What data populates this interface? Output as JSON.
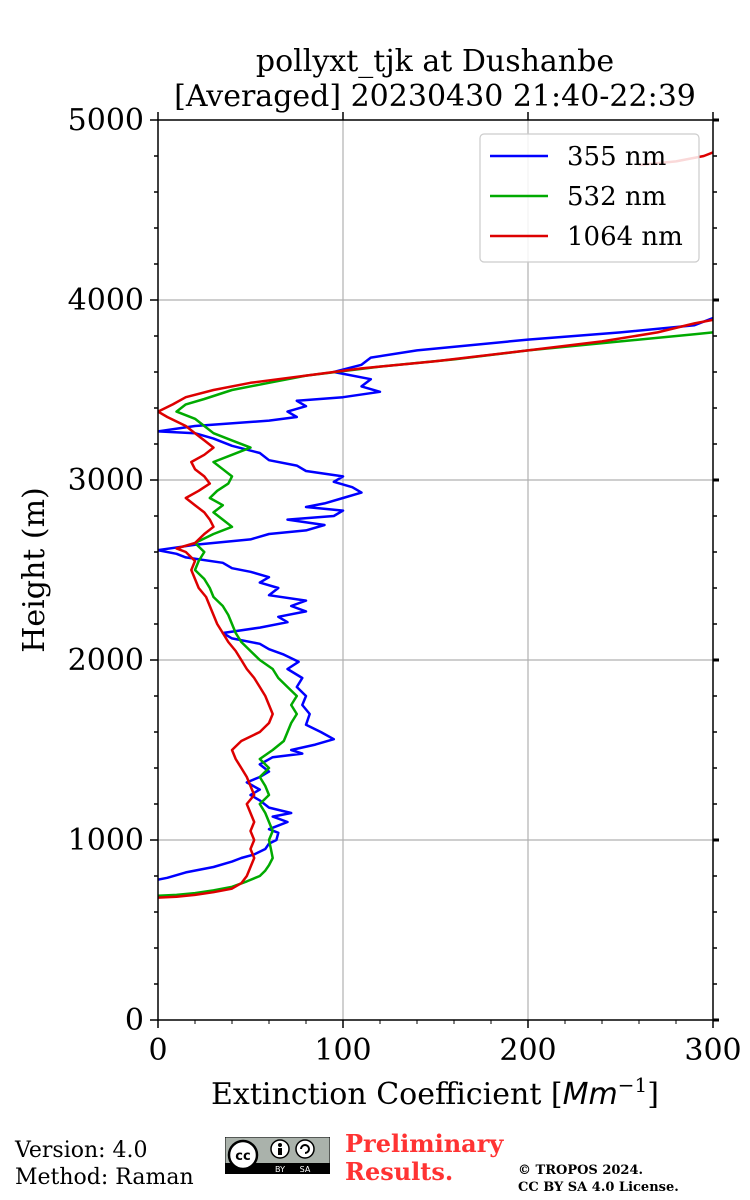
{
  "chart_data": {
    "type": "line",
    "title": "pollyxt_tjk at Dushanbe",
    "subtitle": "[Averaged] 20230430 21:40-22:39",
    "xlabel": "Extinction Coefficient [",
    "xlabel_unit": "Mm",
    "xlabel_exp": "−1",
    "xlabel_end": "]",
    "ylabel": "Height (m)",
    "xlim": [
      0,
      300
    ],
    "ylim": [
      0,
      5000
    ],
    "xticks": [
      0,
      100,
      200,
      300
    ],
    "xtick_labels": [
      "0",
      "100",
      "200",
      "300"
    ],
    "yticks": [
      0,
      1000,
      2000,
      3000,
      4000,
      5000
    ],
    "ytick_labels": [
      "0",
      "1000",
      "2000",
      "3000",
      "4000",
      "5000"
    ],
    "grid": true,
    "legend_position": "top-right",
    "series": [
      {
        "name": "355 nm",
        "color": "#0000ff",
        "points": [
          [
            0,
            780
          ],
          [
            5,
            790
          ],
          [
            15,
            820
          ],
          [
            30,
            850
          ],
          [
            40,
            880
          ],
          [
            45,
            900
          ],
          [
            52,
            920
          ],
          [
            58,
            950
          ],
          [
            60,
            980
          ],
          [
            64,
            1000
          ],
          [
            65,
            1040
          ],
          [
            60,
            1060
          ],
          [
            65,
            1080
          ],
          [
            70,
            1100
          ],
          [
            62,
            1130
          ],
          [
            72,
            1150
          ],
          [
            60,
            1180
          ],
          [
            55,
            1220
          ],
          [
            50,
            1250
          ],
          [
            55,
            1280
          ],
          [
            48,
            1320
          ],
          [
            55,
            1350
          ],
          [
            60,
            1380
          ],
          [
            55,
            1420
          ],
          [
            62,
            1460
          ],
          [
            78,
            1480
          ],
          [
            72,
            1500
          ],
          [
            85,
            1530
          ],
          [
            95,
            1560
          ],
          [
            88,
            1600
          ],
          [
            80,
            1640
          ],
          [
            82,
            1700
          ],
          [
            78,
            1750
          ],
          [
            80,
            1800
          ],
          [
            75,
            1850
          ],
          [
            78,
            1900
          ],
          [
            70,
            1950
          ],
          [
            76,
            1990
          ],
          [
            68,
            2030
          ],
          [
            60,
            2060
          ],
          [
            55,
            2090
          ],
          [
            40,
            2120
          ],
          [
            35,
            2150
          ],
          [
            55,
            2180
          ],
          [
            70,
            2210
          ],
          [
            65,
            2240
          ],
          [
            80,
            2270
          ],
          [
            72,
            2300
          ],
          [
            80,
            2330
          ],
          [
            60,
            2360
          ],
          [
            65,
            2400
          ],
          [
            55,
            2430
          ],
          [
            60,
            2460
          ],
          [
            50,
            2490
          ],
          [
            40,
            2510
          ],
          [
            35,
            2540
          ],
          [
            15,
            2570
          ],
          [
            10,
            2590
          ],
          [
            0,
            2610
          ],
          [
            20,
            2640
          ],
          [
            50,
            2670
          ],
          [
            60,
            2700
          ],
          [
            80,
            2720
          ],
          [
            90,
            2750
          ],
          [
            70,
            2780
          ],
          [
            95,
            2800
          ],
          [
            100,
            2830
          ],
          [
            80,
            2850
          ],
          [
            90,
            2870
          ],
          [
            100,
            2900
          ],
          [
            110,
            2930
          ],
          [
            105,
            2960
          ],
          [
            95,
            2990
          ],
          [
            100,
            3020
          ],
          [
            80,
            3050
          ],
          [
            75,
            3080
          ],
          [
            60,
            3110
          ],
          [
            55,
            3150
          ],
          [
            40,
            3190
          ],
          [
            30,
            3230
          ],
          [
            20,
            3260
          ],
          [
            0,
            3270
          ],
          [
            20,
            3300
          ],
          [
            60,
            3330
          ],
          [
            75,
            3350
          ],
          [
            70,
            3380
          ],
          [
            80,
            3410
          ],
          [
            75,
            3440
          ],
          [
            100,
            3460
          ],
          [
            120,
            3490
          ],
          [
            110,
            3520
          ],
          [
            115,
            3560
          ],
          [
            95,
            3600
          ],
          [
            110,
            3640
          ],
          [
            115,
            3680
          ],
          [
            140,
            3720
          ],
          [
            200,
            3780
          ],
          [
            250,
            3820
          ],
          [
            290,
            3860
          ],
          [
            300,
            3900
          ]
        ]
      },
      {
        "name": "532 nm",
        "color": "#00aa00",
        "points": [
          [
            0,
            690
          ],
          [
            10,
            695
          ],
          [
            20,
            705
          ],
          [
            30,
            720
          ],
          [
            40,
            740
          ],
          [
            48,
            770
          ],
          [
            55,
            800
          ],
          [
            58,
            830
          ],
          [
            60,
            860
          ],
          [
            62,
            900
          ],
          [
            61,
            950
          ],
          [
            60,
            1000
          ],
          [
            62,
            1050
          ],
          [
            60,
            1100
          ],
          [
            58,
            1150
          ],
          [
            55,
            1200
          ],
          [
            60,
            1250
          ],
          [
            58,
            1300
          ],
          [
            55,
            1350
          ],
          [
            60,
            1400
          ],
          [
            55,
            1450
          ],
          [
            62,
            1500
          ],
          [
            68,
            1550
          ],
          [
            70,
            1600
          ],
          [
            72,
            1650
          ],
          [
            75,
            1700
          ],
          [
            72,
            1750
          ],
          [
            75,
            1800
          ],
          [
            70,
            1850
          ],
          [
            65,
            1900
          ],
          [
            62,
            1950
          ],
          [
            55,
            2000
          ],
          [
            50,
            2050
          ],
          [
            45,
            2100
          ],
          [
            42,
            2150
          ],
          [
            40,
            2200
          ],
          [
            38,
            2250
          ],
          [
            35,
            2300
          ],
          [
            30,
            2350
          ],
          [
            28,
            2400
          ],
          [
            25,
            2450
          ],
          [
            20,
            2500
          ],
          [
            22,
            2550
          ],
          [
            25,
            2600
          ],
          [
            20,
            2650
          ],
          [
            30,
            2700
          ],
          [
            40,
            2740
          ],
          [
            35,
            2780
          ],
          [
            30,
            2820
          ],
          [
            35,
            2860
          ],
          [
            28,
            2900
          ],
          [
            32,
            2940
          ],
          [
            38,
            2980
          ],
          [
            40,
            3020
          ],
          [
            35,
            3060
          ],
          [
            30,
            3100
          ],
          [
            40,
            3140
          ],
          [
            50,
            3180
          ],
          [
            40,
            3220
          ],
          [
            30,
            3260
          ],
          [
            25,
            3300
          ],
          [
            20,
            3340
          ],
          [
            10,
            3380
          ],
          [
            15,
            3420
          ],
          [
            25,
            3450
          ],
          [
            40,
            3500
          ],
          [
            60,
            3540
          ],
          [
            80,
            3580
          ],
          [
            120,
            3630
          ],
          [
            160,
            3670
          ],
          [
            200,
            3720
          ],
          [
            250,
            3770
          ],
          [
            290,
            3810
          ],
          [
            300,
            3820
          ]
        ]
      },
      {
        "name": "1064 nm",
        "color": "#dd0000",
        "points": [
          [
            0,
            680
          ],
          [
            10,
            685
          ],
          [
            20,
            695
          ],
          [
            30,
            710
          ],
          [
            40,
            730
          ],
          [
            45,
            760
          ],
          [
            48,
            800
          ],
          [
            50,
            850
          ],
          [
            52,
            900
          ],
          [
            50,
            950
          ],
          [
            52,
            1000
          ],
          [
            50,
            1050
          ],
          [
            52,
            1100
          ],
          [
            50,
            1150
          ],
          [
            48,
            1200
          ],
          [
            52,
            1250
          ],
          [
            50,
            1300
          ],
          [
            48,
            1350
          ],
          [
            45,
            1400
          ],
          [
            42,
            1450
          ],
          [
            40,
            1500
          ],
          [
            45,
            1550
          ],
          [
            55,
            1600
          ],
          [
            60,
            1650
          ],
          [
            62,
            1700
          ],
          [
            60,
            1750
          ],
          [
            58,
            1800
          ],
          [
            55,
            1850
          ],
          [
            52,
            1900
          ],
          [
            48,
            1950
          ],
          [
            45,
            2000
          ],
          [
            42,
            2050
          ],
          [
            38,
            2100
          ],
          [
            35,
            2150
          ],
          [
            32,
            2200
          ],
          [
            30,
            2250
          ],
          [
            28,
            2300
          ],
          [
            26,
            2350
          ],
          [
            22,
            2400
          ],
          [
            20,
            2450
          ],
          [
            18,
            2500
          ],
          [
            20,
            2550
          ],
          [
            15,
            2600
          ],
          [
            10,
            2620
          ],
          [
            20,
            2650
          ],
          [
            25,
            2700
          ],
          [
            30,
            2740
          ],
          [
            28,
            2780
          ],
          [
            25,
            2820
          ],
          [
            20,
            2860
          ],
          [
            15,
            2900
          ],
          [
            22,
            2940
          ],
          [
            28,
            2980
          ],
          [
            25,
            3020
          ],
          [
            20,
            3060
          ],
          [
            18,
            3100
          ],
          [
            25,
            3140
          ],
          [
            30,
            3180
          ],
          [
            25,
            3220
          ],
          [
            20,
            3260
          ],
          [
            15,
            3300
          ],
          [
            5,
            3350
          ],
          [
            0,
            3380
          ],
          [
            8,
            3420
          ],
          [
            15,
            3460
          ],
          [
            30,
            3500
          ],
          [
            50,
            3540
          ],
          [
            80,
            3580
          ],
          [
            110,
            3620
          ],
          [
            150,
            3660
          ],
          [
            200,
            3720
          ],
          [
            240,
            3770
          ],
          [
            270,
            3820
          ],
          [
            290,
            3870
          ],
          [
            300,
            3890
          ]
        ]
      },
      {
        "name": "1064 nm (upper segment)",
        "color": "#dd0000",
        "points": [
          [
            260,
            4750
          ],
          [
            280,
            4770
          ],
          [
            295,
            4800
          ],
          [
            300,
            4820
          ]
        ]
      }
    ]
  },
  "footer": {
    "version": "Version: 4.0",
    "method": "Method: Raman",
    "preliminary_line1": "Preliminary",
    "preliminary_line2": "Results.",
    "copyright_line1": "© TROPOS 2024.",
    "copyright_line2": "CC BY SA 4.0 License.",
    "license_badge": "cc-by-sa-icon",
    "license_badge_text_cc": "cc",
    "license_badge_text_by": "BY",
    "license_badge_text_sa": "SA"
  }
}
